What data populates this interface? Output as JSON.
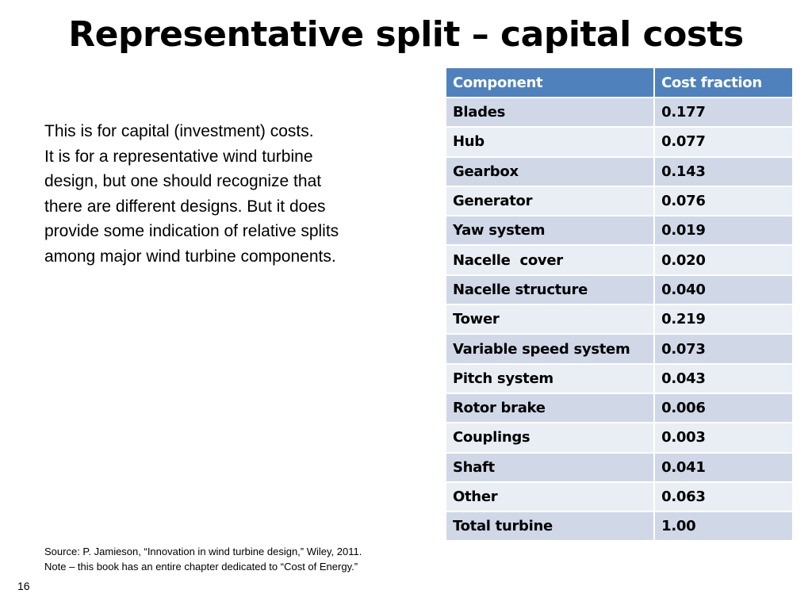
{
  "slide": {
    "title": "Representative split – capital costs",
    "number": "16"
  },
  "body_lines": [
    "This is for capital (investment) costs.",
    "It is for a representative wind turbine",
    "design, but one should recognize that",
    "there are different designs. But it does",
    "provide some indication of relative splits",
    "among major wind turbine components."
  ],
  "source_lines": [
    "Source: P. Jamieson, “Innovation in wind turbine design,” Wiley, 2011.",
    "Note – this book has an entire chapter dedicated to “Cost of Energy.”"
  ],
  "table": {
    "headers": [
      "Component",
      "Cost fraction"
    ],
    "rows": [
      [
        "Blades",
        "0.177"
      ],
      [
        "Hub",
        "0.077"
      ],
      [
        "Gearbox",
        "0.143"
      ],
      [
        "Generator",
        "0.076"
      ],
      [
        "Yaw system",
        "0.019"
      ],
      [
        "Nacelle  cover",
        "0.020"
      ],
      [
        "Nacelle structure",
        "0.040"
      ],
      [
        "Tower",
        "0.219"
      ],
      [
        "Variable speed system",
        "0.073"
      ],
      [
        "Pitch system",
        "0.043"
      ],
      [
        "Rotor brake",
        "0.006"
      ],
      [
        "Couplings",
        "0.003"
      ],
      [
        "Shaft",
        "0.041"
      ],
      [
        "Other",
        "0.063"
      ],
      [
        "Total turbine",
        "1.00"
      ]
    ]
  },
  "colors": {
    "header_bg": "#4f81bd",
    "row_odd_bg": "#d0d8e8",
    "row_even_bg": "#e9edf4"
  }
}
